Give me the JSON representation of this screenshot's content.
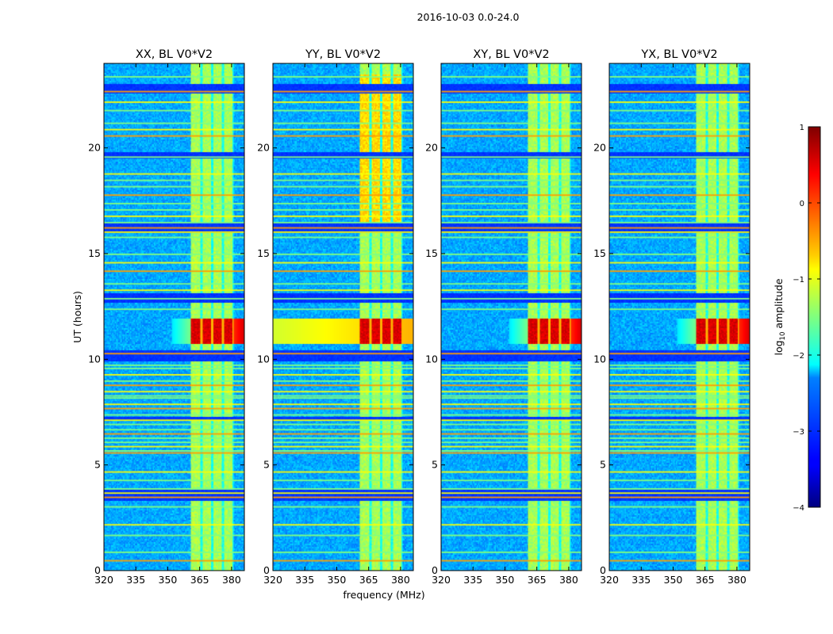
{
  "chart_data": {
    "type": "heatmap",
    "title": "2016-10-03 0.0-24.0",
    "xlabel": "frequency (MHz)",
    "ylabel": "UT (hours)",
    "xlim": [
      320,
      386
    ],
    "ylim": [
      0,
      24
    ],
    "x_ticks": [
      320,
      335,
      350,
      365,
      380
    ],
    "y_ticks": [
      0,
      5,
      10,
      15,
      20
    ],
    "panels": [
      {
        "title": "XX, BL V0*V2",
        "bright_band_level": 0.0,
        "wide_feature": false
      },
      {
        "title": "YY, BL V0*V2",
        "bright_band_level": 0.3,
        "wide_feature": true
      },
      {
        "title": "XY, BL V0*V2",
        "bright_band_level": 0.0,
        "wide_feature": false
      },
      {
        "title": "YX, BL V0*V2",
        "bright_band_level": 0.0,
        "wide_feature": false
      }
    ],
    "signal_band_mhz": [
      361,
      381
    ],
    "signal_subbands_mhz": [
      [
        361,
        365.5
      ],
      [
        366.5,
        370.5
      ],
      [
        371.5,
        375.5
      ],
      [
        376.5,
        380.5
      ]
    ],
    "intense_event_ut": [
      10.75,
      11.9
    ],
    "gap_ut": [
      [
        3.3,
        3.8
      ],
      [
        7.1,
        7.3
      ],
      [
        9.9,
        10.4
      ],
      [
        12.7,
        13.1
      ],
      [
        16.0,
        16.5
      ],
      [
        19.5,
        19.8
      ],
      [
        22.6,
        23.0
      ]
    ],
    "rfi_lines_ut": [
      0.5,
      0.9,
      1.7,
      2.2,
      3.05,
      3.5,
      3.7,
      3.9,
      4.3,
      4.7,
      5.6,
      5.7,
      5.9,
      6.1,
      6.3,
      6.5,
      6.7,
      6.95,
      7.15,
      7.4,
      7.7,
      7.9,
      8.2,
      8.3,
      8.5,
      8.8,
      9.0,
      9.3,
      9.6,
      9.75,
      10.3,
      12.4,
      12.9,
      13.3,
      13.6,
      14.2,
      14.6,
      15.0,
      15.8,
      16.05,
      16.25,
      16.5,
      16.8,
      17.1,
      17.4,
      17.8,
      18.2,
      18.5,
      18.8,
      19.6,
      20.6,
      20.9,
      21.2,
      21.8,
      22.2,
      22.7,
      23.4
    ],
    "colorbar": {
      "label_prefix": "log",
      "label_subscript": "10",
      "label_suffix": " amplitude",
      "range": [
        -4,
        1
      ],
      "ticks": [
        "1",
        "0",
        "−1",
        "−2",
        "−3",
        "−4"
      ],
      "colormap": "jet"
    }
  }
}
